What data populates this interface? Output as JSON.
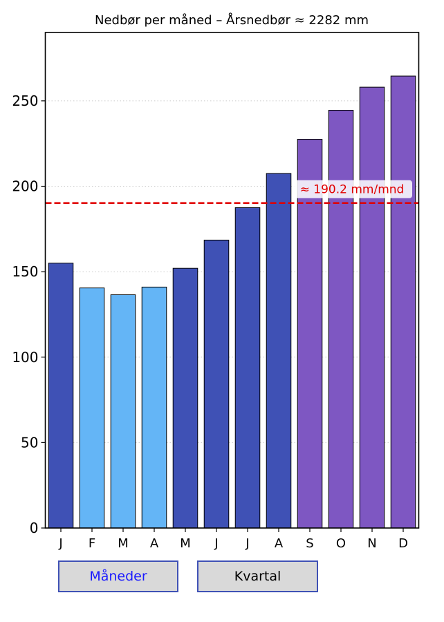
{
  "chart_data": {
    "type": "bar",
    "title": "Nedbør per måned – Årsnedbør ≈ 2282 mm",
    "categories": [
      "J",
      "F",
      "M",
      "A",
      "M",
      "J",
      "J",
      "A",
      "S",
      "O",
      "N",
      "D"
    ],
    "values": [
      155,
      140.5,
      136.5,
      141,
      152,
      168.5,
      187.5,
      207.5,
      227.5,
      244.5,
      258,
      264.5
    ],
    "colors": [
      "#3f51b5",
      "#64b5f6",
      "#64b5f6",
      "#64b5f6",
      "#3f51b5",
      "#3f51b5",
      "#3f51b5",
      "#3f51b5",
      "#7e57c2",
      "#7e57c2",
      "#7e57c2",
      "#7e57c2"
    ],
    "ylim": [
      0,
      290
    ],
    "yticks": [
      0,
      50,
      100,
      150,
      200,
      250
    ],
    "xlabel": "",
    "ylabel": "",
    "grid": "horizontal dotted",
    "mean_line": {
      "value": 190.2,
      "label": "≈ 190.2 mm/mnd",
      "color": "#e00000"
    }
  },
  "controls": {
    "months_label": "Måneder",
    "quarters_label": "Kvartal"
  }
}
